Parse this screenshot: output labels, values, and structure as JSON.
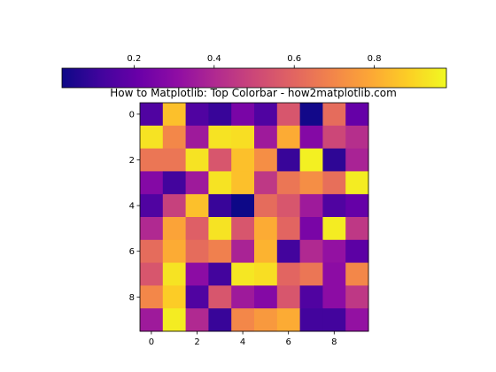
{
  "chart_data": {
    "type": "heatmap",
    "title": "How to Matplotlib: Top Colorbar - how2matplotlib.com",
    "xlabel": "",
    "ylabel": "",
    "colormap": "plasma",
    "xticks": [
      0,
      2,
      4,
      6,
      8
    ],
    "yticks": [
      0,
      2,
      4,
      6,
      8
    ],
    "colorbar": {
      "location": "top",
      "range": [
        0.02,
        0.98
      ],
      "ticks": [
        0.2,
        0.4,
        0.6,
        0.8
      ],
      "tick_labels": [
        "0.2",
        "0.4",
        "0.6",
        "0.8"
      ]
    },
    "values": [
      [
        0.15,
        0.85,
        0.15,
        0.1,
        0.25,
        0.15,
        0.55,
        0.03,
        0.62,
        0.2
      ],
      [
        0.93,
        0.7,
        0.35,
        0.93,
        0.92,
        0.35,
        0.8,
        0.28,
        0.5,
        0.42
      ],
      [
        0.65,
        0.65,
        0.93,
        0.55,
        0.85,
        0.72,
        0.1,
        0.96,
        0.08,
        0.38
      ],
      [
        0.28,
        0.12,
        0.35,
        0.93,
        0.85,
        0.45,
        0.65,
        0.72,
        0.63,
        0.95
      ],
      [
        0.15,
        0.48,
        0.85,
        0.1,
        0.02,
        0.62,
        0.55,
        0.35,
        0.15,
        0.2
      ],
      [
        0.4,
        0.78,
        0.58,
        0.93,
        0.55,
        0.8,
        0.6,
        0.25,
        0.95,
        0.45
      ],
      [
        0.62,
        0.8,
        0.62,
        0.68,
        0.38,
        0.82,
        0.12,
        0.4,
        0.32,
        0.18
      ],
      [
        0.55,
        0.93,
        0.3,
        0.12,
        0.94,
        0.92,
        0.6,
        0.65,
        0.3,
        0.7
      ],
      [
        0.7,
        0.88,
        0.15,
        0.55,
        0.35,
        0.28,
        0.55,
        0.15,
        0.3,
        0.45
      ],
      [
        0.35,
        0.95,
        0.4,
        0.1,
        0.7,
        0.75,
        0.8,
        0.12,
        0.12,
        0.32
      ]
    ]
  }
}
